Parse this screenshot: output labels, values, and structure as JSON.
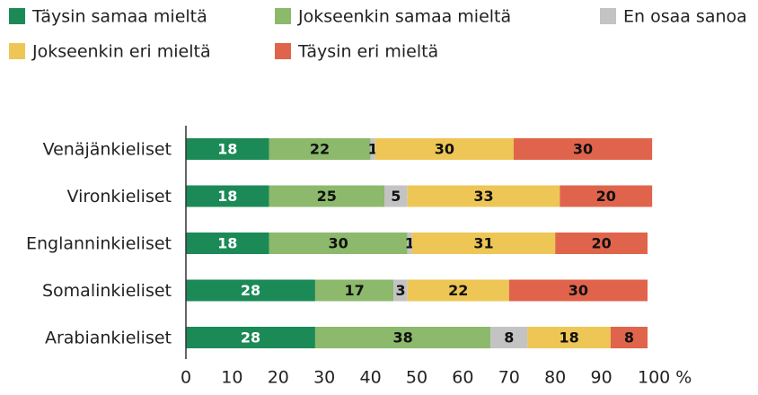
{
  "chart_data": {
    "type": "stacked_barh",
    "categories": [
      "Venäjänkieliset",
      "Vironkieliset",
      "Englanninkieliset",
      "Somalinkieliset",
      "Arabiankieliset"
    ],
    "series": [
      {
        "name": "Täysin samaa mieltä",
        "color": "#1b8a57",
        "values": [
          18,
          18,
          18,
          28,
          28
        ]
      },
      {
        "name": "Jokseenkin samaa mieltä",
        "color": "#8cb96b",
        "values": [
          22,
          25,
          30,
          17,
          38
        ]
      },
      {
        "name": "En osaa sanoa",
        "color": "#c3c3c3",
        "values": [
          1,
          5,
          1,
          3,
          8
        ]
      },
      {
        "name": "Jokseenkin eri mieltä",
        "color": "#edc655",
        "values": [
          30,
          33,
          31,
          22,
          18
        ]
      },
      {
        "name": "Täysin eri mieltä",
        "color": "#e0644b",
        "values": [
          30,
          20,
          20,
          30,
          8
        ]
      }
    ],
    "xlim": [
      0,
      100
    ],
    "xticks": [
      0,
      10,
      20,
      30,
      40,
      50,
      60,
      70,
      80,
      90,
      {
        "value": 100,
        "label": "100 %"
      }
    ]
  }
}
